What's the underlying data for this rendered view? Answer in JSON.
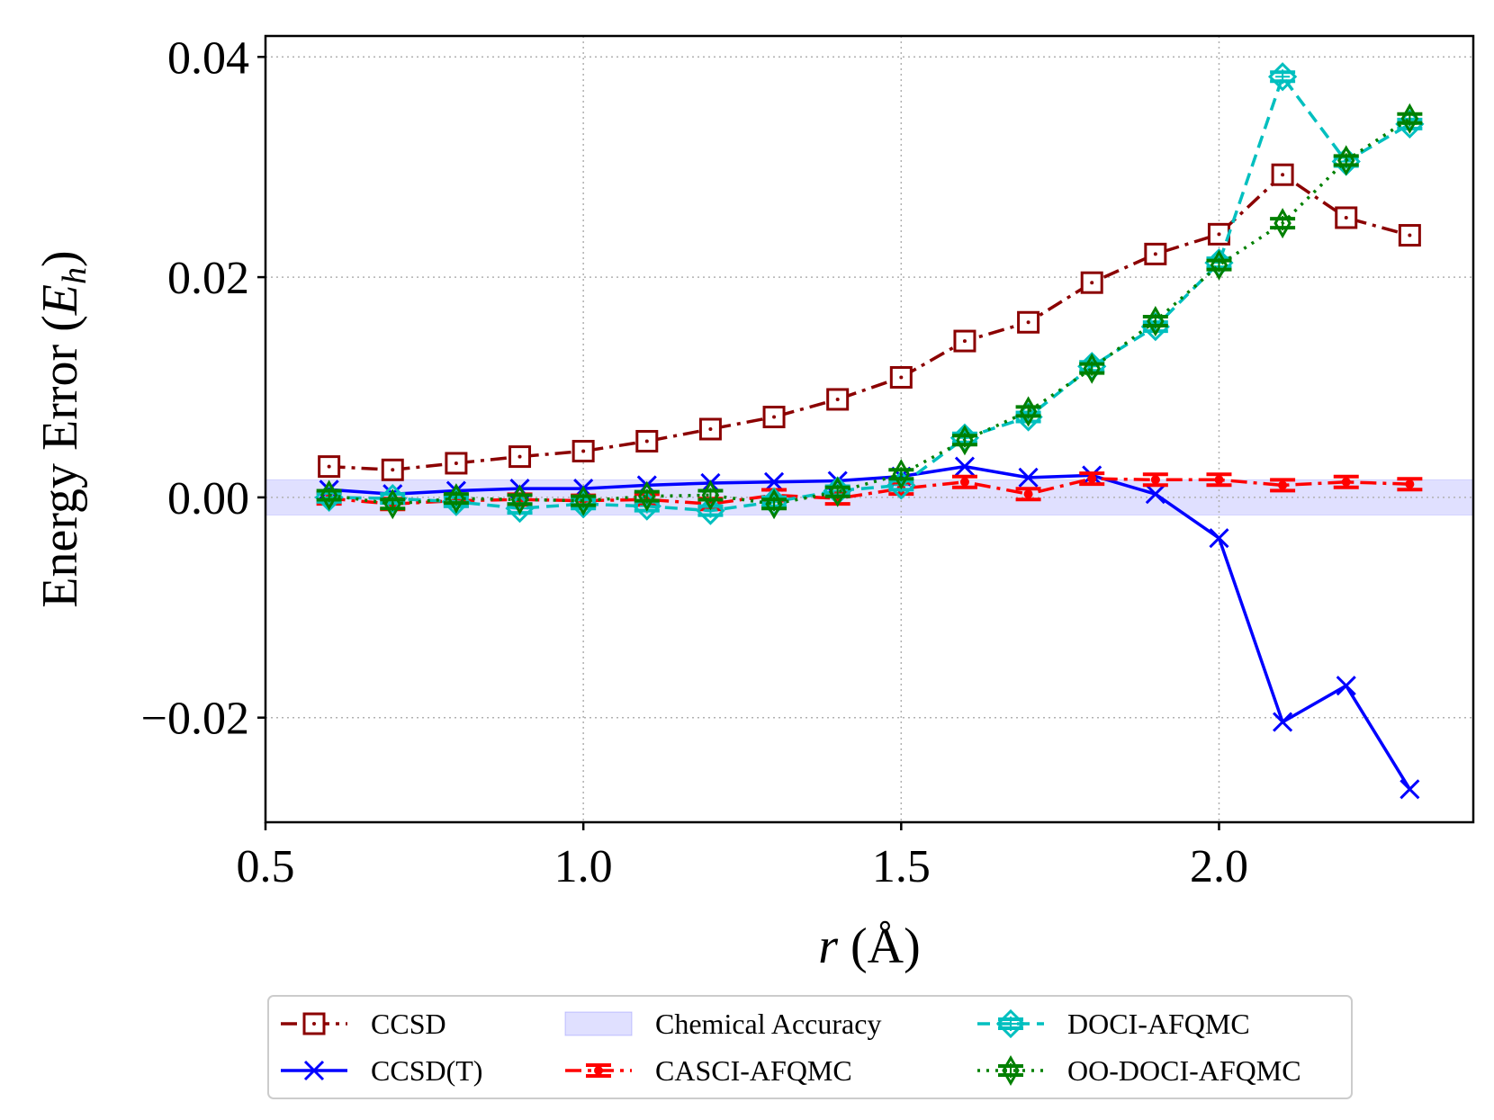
{
  "chart_data": {
    "type": "line",
    "xlabel": "r (Å)",
    "ylabel": "Energy Error (Eh)",
    "xlim": [
      0.5,
      2.4
    ],
    "ylim": [
      -0.0295,
      0.0419
    ],
    "xticks": [
      0.5,
      1.0,
      1.5,
      2.0
    ],
    "xtick_labels": [
      "0.5",
      "1.0",
      "1.5",
      "2.0"
    ],
    "yticks": [
      -0.02,
      0.0,
      0.02,
      0.04
    ],
    "ytick_labels": [
      "−0.02",
      "0.00",
      "0.02",
      "0.04"
    ],
    "grid": true,
    "legend_position": "below plot, 3 columns",
    "chemical_accuracy_band": [
      -0.0016,
      0.0016
    ],
    "x": [
      0.6,
      0.7,
      0.8,
      0.9,
      1.0,
      1.1,
      1.2,
      1.3,
      1.4,
      1.5,
      1.6,
      1.7,
      1.8,
      1.9,
      2.0,
      2.1,
      2.2,
      2.3
    ],
    "legend": [
      {
        "label": "CCSD",
        "key": "ccsd"
      },
      {
        "label": "CCSD(T)",
        "key": "ccsdt"
      },
      {
        "label": "Chemical Accuracy",
        "key": "band"
      },
      {
        "label": "CASCI-AFQMC",
        "key": "casci"
      },
      {
        "label": "DOCI-AFQMC",
        "key": "doci"
      },
      {
        "label": "OO-DOCI-AFQMC",
        "key": "oodoci"
      }
    ],
    "series": [
      {
        "name": "CCSD",
        "key": "ccsd",
        "color": "#8b0000",
        "dash": "dashdot",
        "marker": "square",
        "values": [
          0.0028,
          0.0025,
          0.0031,
          0.0037,
          0.0042,
          0.0051,
          0.0062,
          0.0073,
          0.0089,
          0.0109,
          0.0142,
          0.0159,
          0.0195,
          0.0221,
          0.0239,
          0.0293,
          0.0254,
          0.0238
        ]
      },
      {
        "name": "CCSD(T)",
        "key": "ccsdt",
        "color": "#0000ff",
        "dash": "solid",
        "marker": "x",
        "values": [
          0.0007,
          0.0003,
          0.0006,
          0.0008,
          0.0008,
          0.0011,
          0.0013,
          0.0014,
          0.0015,
          0.0019,
          0.0028,
          0.0018,
          0.002,
          0.0003,
          -0.0037,
          -0.0204,
          -0.0171,
          -0.0265
        ]
      },
      {
        "name": "CASCI-AFQMC",
        "key": "casci",
        "color": "#ff0000",
        "dash": "dashdot",
        "marker": "dot",
        "values": [
          -0.0001,
          -0.0006,
          -0.0003,
          -0.0002,
          -0.0003,
          -0.0002,
          -0.0006,
          0.0002,
          -0.0001,
          0.0008,
          0.0014,
          0.0003,
          0.0017,
          0.0016,
          0.0016,
          0.0011,
          0.0014,
          0.0012
        ]
      },
      {
        "name": "DOCI-AFQMC",
        "key": "doci",
        "color": "#00bfbf",
        "dash": "dashed",
        "marker": "diamond-plus",
        "values": [
          0.0,
          -0.0001,
          -0.0004,
          -0.001,
          -0.0006,
          -0.0008,
          -0.0012,
          -0.0004,
          0.0006,
          0.0011,
          0.0054,
          0.0073,
          0.0119,
          0.0155,
          0.0213,
          0.0382,
          0.0305,
          0.0339
        ]
      },
      {
        "name": "OO-DOCI-AFQMC",
        "key": "oodoci",
        "color": "#008000",
        "dash": "dotted",
        "marker": "diamond-thin",
        "values": [
          0.0002,
          -0.0006,
          -0.0001,
          -0.0002,
          -0.0003,
          0.0001,
          0.0002,
          -0.0006,
          0.0005,
          0.0021,
          0.0052,
          0.0078,
          0.0117,
          0.016,
          0.0211,
          0.0249,
          0.0306,
          0.0344
        ]
      }
    ]
  }
}
